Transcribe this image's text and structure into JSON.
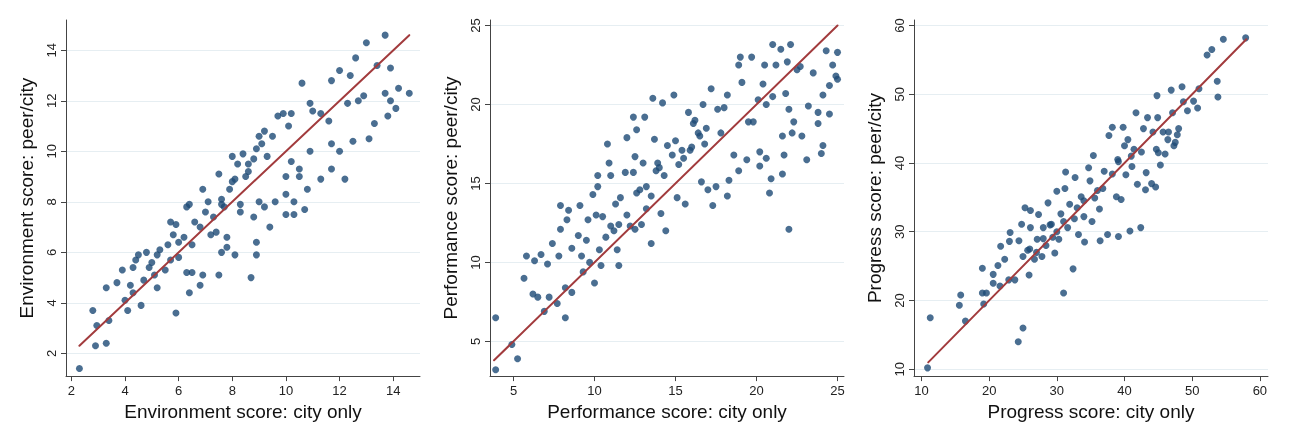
{
  "chart_data": [
    {
      "type": "scatter",
      "xlabel": "Environment score: city only",
      "ylabel": "Environment score: peer/city",
      "xlim": [
        1.8,
        15
      ],
      "ylim": [
        1.1,
        15.2
      ],
      "xticks": [
        2,
        4,
        6,
        8,
        10,
        12,
        14
      ],
      "yticks": [
        2,
        4,
        6,
        8,
        10,
        12,
        14
      ],
      "grid": "y",
      "series": [
        {
          "marker": "circle",
          "color": "#1d4a76",
          "x": [
            2.3,
            2.8,
            2.95,
            2.9,
            3.3,
            3.3,
            3.4,
            3.7,
            3.9,
            4.0,
            4.1,
            4.2,
            4.3,
            4.3,
            4.4,
            4.5,
            4.6,
            4.7,
            4.8,
            4.9,
            5.0,
            5.1,
            5.2,
            5.2,
            5.3,
            5.5,
            5.6,
            5.7,
            5.7,
            5.8,
            5.9,
            5.9,
            6.0,
            6.0,
            6.2,
            6.3,
            6.3,
            6.4,
            6.4,
            6.5,
            6.5,
            6.6,
            6.8,
            6.8,
            6.9,
            6.9,
            7.0,
            7.1,
            7.2,
            7.3,
            7.4,
            7.5,
            7.5,
            7.6,
            7.6,
            7.7,
            7.8,
            7.8,
            7.9,
            8.0,
            8.1,
            8.1,
            8.2,
            8.3,
            8.3,
            8.4,
            8.5,
            8.6,
            8.7,
            8.8,
            8.9,
            8.9,
            8.9,
            9.0,
            9.0,
            9.2,
            9.2,
            9.4,
            9.6,
            9.7,
            9.9,
            10.0,
            10.0,
            10.0,
            10.2,
            10.3,
            10.3,
            10.6,
            10.7,
            10.8,
            10.9,
            10.9,
            11.3,
            11.3,
            11.6,
            11.7,
            11.7,
            11.7,
            12.0,
            12.0,
            12.2,
            12.3,
            12.4,
            12.5,
            12.6,
            12.7,
            12.9,
            13.0,
            13.1,
            13.3,
            13.4,
            13.7,
            13.7,
            13.8,
            13.9,
            13.9,
            14.1,
            14.2,
            14.6,
            8.6,
            8.8,
            9.1,
            9.3,
            8.0,
            7.6,
            9.5,
            10.1,
            10.2,
            10.5,
            11.0,
            10.5
          ],
          "values": [
            1.4,
            3.7,
            3.1,
            2.3,
            2.4,
            4.6,
            3.3,
            4.8,
            5.3,
            4.1,
            3.7,
            4.7,
            4.4,
            5.4,
            5.7,
            5.9,
            3.9,
            4.9,
            6.0,
            5.4,
            5.6,
            5.1,
            4.6,
            5.9,
            6.1,
            5.3,
            6.3,
            5.7,
            7.2,
            6.7,
            3.6,
            7.1,
            5.8,
            6.4,
            6.6,
            5.2,
            7.8,
            4.4,
            7.9,
            6.3,
            5.2,
            7.2,
            7.0,
            4.7,
            5.1,
            8.5,
            7.6,
            8.0,
            6.7,
            7.4,
            6.8,
            5.1,
            9.1,
            6.0,
            8.1,
            7.8,
            6.6,
            6.2,
            8.5,
            9.8,
            5.9,
            8.9,
            9.5,
            7.9,
            7.6,
            9.9,
            9.0,
            9.5,
            5.0,
            7.4,
            10.1,
            5.9,
            6.4,
            8.0,
            10.6,
            7.8,
            10.8,
            7.0,
            8.0,
            11.4,
            11.5,
            7.5,
            8.3,
            9.0,
            11.5,
            8.0,
            7.5,
            12.7,
            7.7,
            8.5,
            10.0,
            11.9,
            8.9,
            11.5,
            11.2,
            12.8,
            10.3,
            9.3,
            10.0,
            13.2,
            8.9,
            11.9,
            13.0,
            10.4,
            13.7,
            12.0,
            12.2,
            14.3,
            10.5,
            11.1,
            13.4,
            14.6,
            12.3,
            11.4,
            13.3,
            12.0,
            11.7,
            12.5,
            12.3,
            9.2,
            9.7,
            10.3,
            9.8,
            8.8,
            7.9,
            10.6,
            11.0,
            9.6,
            9.0,
            11.6,
            9.3
          ]
        },
        {
          "type": "line",
          "marker": "none",
          "color": "#a23b3d",
          "x": [
            2.3,
            14.6
          ],
          "values": [
            2.3,
            14.6
          ]
        }
      ]
    },
    {
      "type": "scatter",
      "xlabel": "Performance score: city only",
      "ylabel": "Performance score: peer/city",
      "xlim": [
        3.55,
        25.4
      ],
      "ylim": [
        2.8,
        25.35
      ],
      "xticks": [
        5,
        10,
        15,
        20,
        25
      ],
      "yticks": [
        5,
        10,
        15,
        20,
        25
      ],
      "grid": "y",
      "series": [
        {
          "marker": "circle",
          "color": "#1d4a76",
          "x": [
            3.9,
            3.9,
            4.9,
            5.25,
            5.65,
            5.8,
            6.3,
            6.2,
            6.5,
            6.7,
            6.9,
            7.1,
            7.2,
            7.4,
            7.7,
            7.8,
            7.9,
            7.9,
            8.2,
            8.2,
            8.3,
            8.4,
            8.6,
            8.6,
            9.0,
            9.1,
            9.2,
            9.3,
            9.5,
            9.6,
            9.7,
            9.9,
            10.0,
            10.1,
            10.2,
            10.2,
            10.3,
            10.4,
            10.5,
            10.7,
            10.8,
            11.0,
            10.9,
            11.0,
            11.2,
            11.3,
            11.4,
            11.5,
            11.6,
            11.9,
            12.0,
            12.0,
            12.2,
            12.4,
            12.4,
            12.5,
            12.6,
            12.6,
            12.8,
            12.9,
            13.0,
            13.1,
            13.2,
            13.5,
            13.5,
            13.6,
            13.7,
            13.8,
            13.9,
            14.1,
            14.2,
            14.3,
            14.4,
            14.5,
            14.8,
            14.9,
            15.1,
            15.2,
            15.4,
            15.6,
            15.8,
            15.9,
            16.2,
            16.4,
            16.6,
            16.7,
            16.9,
            17.0,
            17.2,
            17.3,
            17.5,
            17.6,
            17.8,
            18.0,
            18.2,
            18.2,
            18.3,
            18.6,
            18.9,
            18.9,
            19.0,
            19.1,
            19.4,
            19.5,
            19.7,
            19.8,
            20.1,
            20.2,
            20.2,
            20.4,
            20.5,
            20.6,
            20.6,
            20.8,
            20.9,
            21.0,
            21.0,
            21.2,
            21.5,
            21.6,
            21.6,
            21.7,
            21.8,
            21.9,
            22.0,
            22.0,
            22.1,
            22.2,
            22.3,
            22.5,
            22.7,
            22.8,
            23.1,
            23.2,
            23.5,
            23.8,
            23.8,
            24.0,
            24.1,
            24.1,
            24.3,
            24.5,
            24.5,
            24.7,
            24.9,
            25.0,
            25.0,
            15.0,
            15.5,
            16.1,
            16.5,
            16.8,
            14.0,
            13.2,
            11.5,
            12.5,
            16.0
          ],
          "values": [
            6.5,
            3.2,
            4.8,
            3.9,
            9.0,
            10.4,
            10.1,
            8.0,
            7.8,
            10.5,
            6.9,
            9.9,
            7.8,
            11.2,
            7.4,
            10.4,
            13.6,
            12.1,
            6.5,
            8.4,
            12.7,
            13.3,
            10.9,
            8.1,
            11.7,
            13.6,
            10.4,
            9.4,
            11.4,
            12.7,
            10.0,
            14.3,
            8.7,
            13.0,
            15.5,
            14.8,
            10.8,
            9.8,
            12.9,
            11.6,
            17.5,
            12.3,
            16.3,
            15.5,
            12.0,
            13.7,
            10.8,
            9.8,
            14.1,
            15.7,
            17.9,
            13.0,
            12.3,
            15.7,
            19.2,
            16.7,
            14.4,
            18.4,
            14.6,
            12.4,
            16.3,
            19.2,
            13.4,
            11.2,
            14.2,
            20.4,
            17.8,
            15.8,
            16.3,
            13.1,
            20.1,
            15.5,
            12.0,
            17.4,
            16.8,
            20.6,
            14.1,
            16.2,
            17.1,
            13.7,
            19.5,
            17.1,
            19.0,
            18.2,
            15.1,
            20.0,
            18.5,
            14.6,
            21.0,
            13.6,
            14.8,
            19.7,
            18.2,
            19.8,
            14.2,
            20.6,
            15.2,
            16.8,
            15.8,
            22.5,
            23.0,
            21.4,
            16.5,
            18.9,
            23.0,
            18.9,
            20.3,
            16.1,
            17.0,
            21.3,
            22.5,
            20.0,
            16.6,
            14.4,
            15.3,
            23.8,
            20.5,
            22.5,
            23.5,
            15.6,
            18.0,
            16.8,
            20.7,
            22.7,
            12.1,
            19.7,
            23.8,
            18.2,
            18.9,
            22.2,
            22.4,
            18.0,
            16.5,
            19.9,
            22.0,
            19.5,
            18.8,
            16.9,
            17.4,
            20.6,
            23.4,
            19.4,
            21.2,
            22.5,
            21.8,
            23.3,
            21.6,
            17.7,
            16.6,
            18.8,
            18.0,
            17.5,
            16.0,
            14.8,
            12.4,
            12.1,
            17.3
          ]
        },
        {
          "type": "line",
          "marker": "none",
          "color": "#a23b3d",
          "x": [
            3.8,
            25
          ],
          "values": [
            3.8,
            25
          ]
        }
      ]
    },
    {
      "type": "scatter",
      "xlabel": "Progress score: city only",
      "ylabel": "Progress score: peer/city",
      "xlim": [
        8.9,
        61.2
      ],
      "ylim": [
        9,
        60.8
      ],
      "xticks": [
        10,
        20,
        30,
        40,
        50,
        60
      ],
      "yticks": [
        10,
        20,
        30,
        40,
        50,
        60
      ],
      "grid": "y",
      "series": [
        {
          "marker": "circle",
          "color": "#1d4a76",
          "x": [
            10.9,
            11.3,
            15.6,
            15.8,
            16.5,
            19.0,
            19.0,
            19.2,
            19.6,
            20.6,
            20.6,
            21.3,
            21.6,
            21.7,
            22.3,
            22.9,
            23.0,
            23.1,
            23.8,
            24.3,
            24.4,
            24.8,
            25.0,
            25.0,
            25.3,
            25.7,
            25.9,
            26.1,
            26.1,
            26.7,
            27.1,
            27.3,
            27.8,
            28.0,
            28.4,
            28.7,
            29.2,
            29.4,
            29.7,
            30.0,
            30.3,
            30.6,
            31.0,
            31.2,
            31.3,
            31.6,
            31.9,
            32.4,
            32.6,
            32.7,
            33.2,
            33.6,
            34.0,
            34.1,
            34.7,
            34.9,
            35.2,
            35.4,
            35.6,
            36.3,
            36.4,
            36.8,
            37.0,
            37.5,
            37.7,
            38.2,
            38.2,
            38.8,
            39.1,
            39.1,
            39.5,
            39.8,
            40.2,
            40.5,
            40.8,
            41.1,
            41.4,
            41.7,
            41.9,
            42.4,
            42.5,
            42.8,
            43.1,
            43.2,
            43.4,
            44.0,
            44.2,
            44.6,
            44.7,
            44.8,
            44.9,
            45.3,
            45.7,
            46.0,
            46.4,
            46.9,
            47.1,
            47.3,
            47.8,
            48.0,
            48.5,
            48.7,
            49.3,
            50.2,
            50.8,
            51.0,
            52.2,
            52.9,
            53.7,
            53.8,
            54.6,
            57.9,
            33,
            34,
            36,
            31,
            30,
            29,
            28,
            27,
            26,
            46.5,
            47.5,
            45,
            39,
            40,
            41
          ],
          "values": [
            10.2,
            17.5,
            19.3,
            20.8,
            17.0,
            21.1,
            24.7,
            19.5,
            21.1,
            23.8,
            22.5,
            25.1,
            22.1,
            27.9,
            26.0,
            23.0,
            28.6,
            29.9,
            23.0,
            14.0,
            28.7,
            31.1,
            16.0,
            26.4,
            33.5,
            27.3,
            23.7,
            30.6,
            33.1,
            26.0,
            28.9,
            32.5,
            26.4,
            30.6,
            28.0,
            34.2,
            31.1,
            29.2,
            26.9,
            35.9,
            28.9,
            32.6,
            21.1,
            36.3,
            38.7,
            30.6,
            34.0,
            24.6,
            31.9,
            37.9,
            29.6,
            35.1,
            32.2,
            28.5,
            39.3,
            37.4,
            31.5,
            41.1,
            34.9,
            33.3,
            28.7,
            36.3,
            38.8,
            29.6,
            44.0,
            45.2,
            38.4,
            35.1,
            29.3,
            40.2,
            34.7,
            45.2,
            38.3,
            43.4,
            30.1,
            39.5,
            42.0,
            47.3,
            36.9,
            30.6,
            41.6,
            45.0,
            36.1,
            38.6,
            46.6,
            37.0,
            44.5,
            36.5,
            42.0,
            49.8,
            46.6,
            39.7,
            44.5,
            41.3,
            43.4,
            50.6,
            47.3,
            42.5,
            44.1,
            45.0,
            51.1,
            48.9,
            47.6,
            49.0,
            48.0,
            50.8,
            55.7,
            56.5,
            51.9,
            49.6,
            58.0,
            58.2,
            33.5,
            34.5,
            36,
            31.5,
            30,
            31,
            29,
            27,
            27.5,
            44.5,
            43.0,
            41.5,
            40.5,
            42.5,
            41
          ]
        },
        {
          "type": "line",
          "marker": "none",
          "color": "#a23b3d",
          "x": [
            11,
            58
          ],
          "values": [
            11,
            58
          ]
        }
      ]
    }
  ]
}
